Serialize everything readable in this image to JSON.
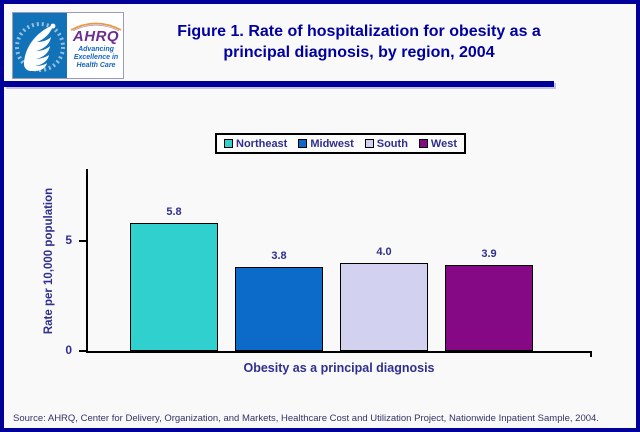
{
  "page": {
    "background": "#F9F9F9",
    "border_color": "#000099"
  },
  "header": {
    "title_lines": [
      "Figure 1. Rate of hospitalization for obesity as a",
      "principal diagnosis, by region, 2004"
    ],
    "title_color": "#0000A0"
  },
  "logo": {
    "org_abbrev": "AHRQ",
    "tagline_lines": [
      "Advancing",
      "Excellence in",
      "Health Care"
    ],
    "colors": {
      "seal_bg": "#1272B8",
      "ahrq_text": "#6B2D91",
      "tagline": "#1565C0",
      "arc": "#E89A3C"
    }
  },
  "chart_data": {
    "type": "bar",
    "categories": [
      "Obesity as a principal diagnosis"
    ],
    "series": [
      {
        "name": "Northeast",
        "value": 5.8,
        "label": "5.8",
        "color": "#30D0CE"
      },
      {
        "name": "Midwest",
        "value": 3.8,
        "label": "3.8",
        "color": "#0C6BC8"
      },
      {
        "name": "South",
        "value": 4.0,
        "label": "4.0",
        "color": "#D2D2F0"
      },
      {
        "name": "West",
        "value": 3.9,
        "label": "3.9",
        "color": "#850885"
      }
    ],
    "xlabel": "Obesity as a principal diagnosis",
    "ylabel": "Rate per 10,000 population",
    "yticks": [
      0,
      5
    ],
    "ylim": [
      0,
      8.25
    ],
    "grid": false,
    "legend_position": "top-center",
    "label_color": "#2F2F90"
  },
  "footer": {
    "source": "Source: AHRQ, Center for Delivery, Organization, and Markets, Healthcare Cost and Utilization Project, Nationwide Inpatient Sample, 2004."
  }
}
